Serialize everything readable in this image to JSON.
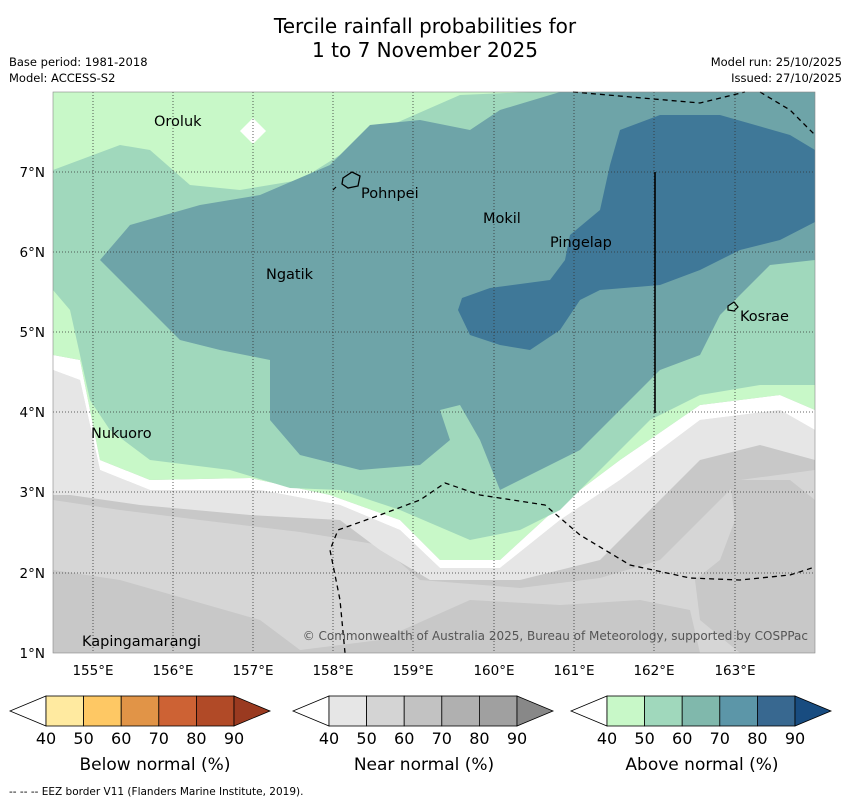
{
  "title": {
    "line1": "Tercile rainfall probabilities for",
    "line2": "1 to 7 November 2025"
  },
  "meta": {
    "base_period": "Base period: 1981-2018",
    "model": "Model: ACCESS-S2",
    "model_run": "Model run: 25/10/2025",
    "issued": "Issued: 27/10/2025"
  },
  "map": {
    "x_ticks": [
      "155°E",
      "156°E",
      "157°E",
      "158°E",
      "159°E",
      "160°E",
      "161°E",
      "162°E",
      "163°E"
    ],
    "y_ticks": [
      "7°N",
      "6°N",
      "5°N",
      "4°N",
      "3°N",
      "2°N",
      "1°N"
    ],
    "places": [
      {
        "name": "Oroluk"
      },
      {
        "name": "Pohnpei"
      },
      {
        "name": "Mokil"
      },
      {
        "name": "Pingelap"
      },
      {
        "name": "Ngatik"
      },
      {
        "name": "Kosrae"
      },
      {
        "name": "Nukuoro"
      },
      {
        "name": "Kapingamarangi"
      }
    ],
    "copyright": "© Commonwealth of Australia 2025, Bureau of Meteorology, supported by COSPPac"
  },
  "colorbars": [
    {
      "label": "Below normal (%)",
      "ticks": [
        "40",
        "50",
        "60",
        "70",
        "80",
        "90"
      ],
      "colors": [
        "#ffffff",
        "#ffeaa0",
        "#fec864",
        "#e19447",
        "#cd6234",
        "#b14a27",
        "#9a3a20"
      ]
    },
    {
      "label": "Near normal (%)",
      "ticks": [
        "40",
        "50",
        "60",
        "70",
        "80",
        "90"
      ],
      "colors": [
        "#ffffff",
        "#e6e6e6",
        "#d4d4d4",
        "#c2c2c2",
        "#b0b0b0",
        "#a0a0a0",
        "#888888"
      ]
    },
    {
      "label": "Above normal (%)",
      "ticks": [
        "40",
        "50",
        "60",
        "70",
        "80",
        "90"
      ],
      "colors": [
        "#ffffff",
        "#c8f8c8",
        "#a0d8bc",
        "#80b8ac",
        "#5c96a8",
        "#386890",
        "#184c80"
      ]
    }
  ],
  "footnote": "-- -- -- EEZ border V11 (Flanders Marine Institute, 2019)."
}
